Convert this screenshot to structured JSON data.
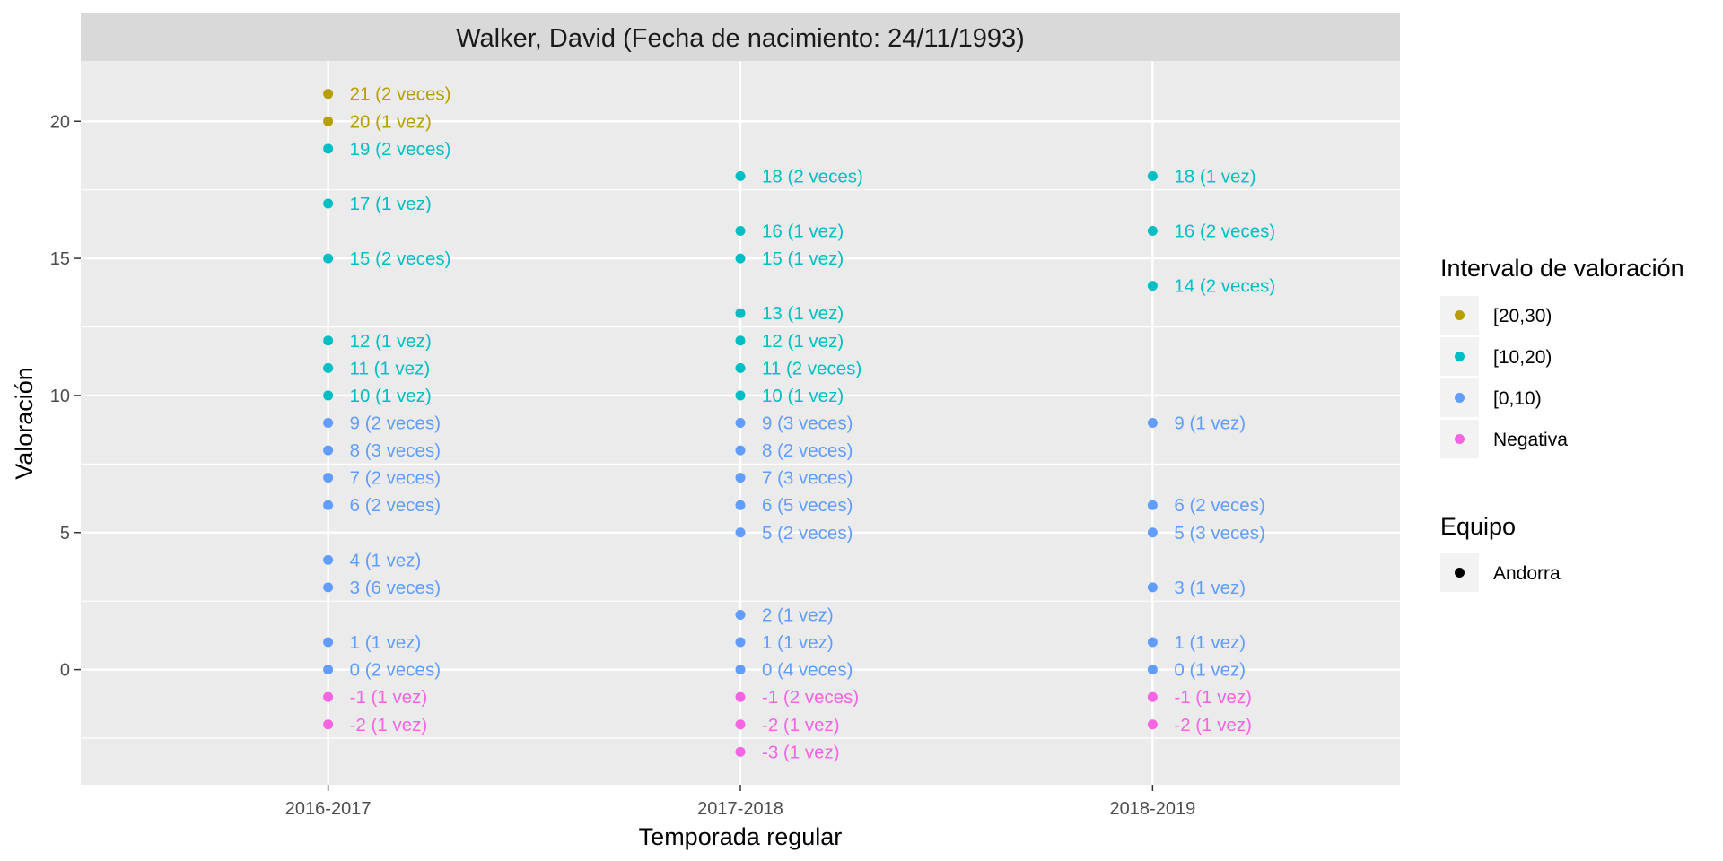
{
  "chart_data": {
    "type": "scatter",
    "title": "Walker, David (Fecha de nacimiento: 24/11/1993)",
    "xlabel": "Temporada regular",
    "ylabel": "Valoración",
    "categories": [
      "2016-2017",
      "2017-2018",
      "2018-2019"
    ],
    "ylim": [
      -4.2,
      22.2
    ],
    "yticks": [
      0,
      5,
      10,
      15,
      20
    ],
    "yticks_labels": [
      "0",
      "5",
      "10",
      "15",
      "20"
    ],
    "grid": true,
    "legend_position": "right",
    "color_legend": {
      "title": "Intervalo de valoración",
      "entries": [
        {
          "label": "[20,30)",
          "color": "#B79F00"
        },
        {
          "label": "[10,20)",
          "color": "#00BFC4"
        },
        {
          "label": "[0,10)",
          "color": "#619CFF"
        },
        {
          "label": "Negativa",
          "color": "#F564E3"
        }
      ]
    },
    "team_legend": {
      "title": "Equipo",
      "entries": [
        {
          "label": "Andorra",
          "color": "#000000"
        }
      ]
    },
    "points": [
      {
        "x": "2016-2017",
        "y": 21,
        "label": "21 (2 veces)",
        "group": "[20,30)"
      },
      {
        "x": "2016-2017",
        "y": 20,
        "label": "20 (1 vez)",
        "group": "[20,30)"
      },
      {
        "x": "2016-2017",
        "y": 19,
        "label": "19 (2 veces)",
        "group": "[10,20)"
      },
      {
        "x": "2016-2017",
        "y": 17,
        "label": "17 (1 vez)",
        "group": "[10,20)"
      },
      {
        "x": "2016-2017",
        "y": 15,
        "label": "15 (2 veces)",
        "group": "[10,20)"
      },
      {
        "x": "2016-2017",
        "y": 12,
        "label": "12 (1 vez)",
        "group": "[10,20)"
      },
      {
        "x": "2016-2017",
        "y": 11,
        "label": "11 (1 vez)",
        "group": "[10,20)"
      },
      {
        "x": "2016-2017",
        "y": 10,
        "label": "10 (1 vez)",
        "group": "[10,20)"
      },
      {
        "x": "2016-2017",
        "y": 9,
        "label": "9 (2 veces)",
        "group": "[0,10)"
      },
      {
        "x": "2016-2017",
        "y": 8,
        "label": "8 (3 veces)",
        "group": "[0,10)"
      },
      {
        "x": "2016-2017",
        "y": 7,
        "label": "7 (2 veces)",
        "group": "[0,10)"
      },
      {
        "x": "2016-2017",
        "y": 6,
        "label": "6 (2 veces)",
        "group": "[0,10)"
      },
      {
        "x": "2016-2017",
        "y": 4,
        "label": "4 (1 vez)",
        "group": "[0,10)"
      },
      {
        "x": "2016-2017",
        "y": 3,
        "label": "3 (6 veces)",
        "group": "[0,10)"
      },
      {
        "x": "2016-2017",
        "y": 1,
        "label": "1 (1 vez)",
        "group": "[0,10)"
      },
      {
        "x": "2016-2017",
        "y": 0,
        "label": "0 (2 veces)",
        "group": "[0,10)"
      },
      {
        "x": "2016-2017",
        "y": -1,
        "label": "-1 (1 vez)",
        "group": "Negativa"
      },
      {
        "x": "2016-2017",
        "y": -2,
        "label": "-2 (1 vez)",
        "group": "Negativa"
      },
      {
        "x": "2017-2018",
        "y": 18,
        "label": "18 (2 veces)",
        "group": "[10,20)"
      },
      {
        "x": "2017-2018",
        "y": 16,
        "label": "16 (1 vez)",
        "group": "[10,20)"
      },
      {
        "x": "2017-2018",
        "y": 15,
        "label": "15 (1 vez)",
        "group": "[10,20)"
      },
      {
        "x": "2017-2018",
        "y": 13,
        "label": "13 (1 vez)",
        "group": "[10,20)"
      },
      {
        "x": "2017-2018",
        "y": 12,
        "label": "12 (1 vez)",
        "group": "[10,20)"
      },
      {
        "x": "2017-2018",
        "y": 11,
        "label": "11 (2 veces)",
        "group": "[10,20)"
      },
      {
        "x": "2017-2018",
        "y": 10,
        "label": "10 (1 vez)",
        "group": "[10,20)"
      },
      {
        "x": "2017-2018",
        "y": 9,
        "label": "9 (3 veces)",
        "group": "[0,10)"
      },
      {
        "x": "2017-2018",
        "y": 8,
        "label": "8 (2 veces)",
        "group": "[0,10)"
      },
      {
        "x": "2017-2018",
        "y": 7,
        "label": "7 (3 veces)",
        "group": "[0,10)"
      },
      {
        "x": "2017-2018",
        "y": 6,
        "label": "6 (5 veces)",
        "group": "[0,10)"
      },
      {
        "x": "2017-2018",
        "y": 5,
        "label": "5 (2 veces)",
        "group": "[0,10)"
      },
      {
        "x": "2017-2018",
        "y": 2,
        "label": "2 (1 vez)",
        "group": "[0,10)"
      },
      {
        "x": "2017-2018",
        "y": 1,
        "label": "1 (1 vez)",
        "group": "[0,10)"
      },
      {
        "x": "2017-2018",
        "y": 0,
        "label": "0 (4 veces)",
        "group": "[0,10)"
      },
      {
        "x": "2017-2018",
        "y": -1,
        "label": "-1 (2 veces)",
        "group": "Negativa"
      },
      {
        "x": "2017-2018",
        "y": -2,
        "label": "-2 (1 vez)",
        "group": "Negativa"
      },
      {
        "x": "2017-2018",
        "y": -3,
        "label": "-3 (1 vez)",
        "group": "Negativa"
      },
      {
        "x": "2018-2019",
        "y": 18,
        "label": "18 (1 vez)",
        "group": "[10,20)"
      },
      {
        "x": "2018-2019",
        "y": 16,
        "label": "16 (2 veces)",
        "group": "[10,20)"
      },
      {
        "x": "2018-2019",
        "y": 14,
        "label": "14 (2 veces)",
        "group": "[10,20)"
      },
      {
        "x": "2018-2019",
        "y": 9,
        "label": "9 (1 vez)",
        "group": "[0,10)"
      },
      {
        "x": "2018-2019",
        "y": 6,
        "label": "6 (2 veces)",
        "group": "[0,10)"
      },
      {
        "x": "2018-2019",
        "y": 5,
        "label": "5 (3 veces)",
        "group": "[0,10)"
      },
      {
        "x": "2018-2019",
        "y": 3,
        "label": "3 (1 vez)",
        "group": "[0,10)"
      },
      {
        "x": "2018-2019",
        "y": 1,
        "label": "1 (1 vez)",
        "group": "[0,10)"
      },
      {
        "x": "2018-2019",
        "y": 0,
        "label": "0 (1 vez)",
        "group": "[0,10)"
      },
      {
        "x": "2018-2019",
        "y": -1,
        "label": "-1 (1 vez)",
        "group": "Negativa"
      },
      {
        "x": "2018-2019",
        "y": -2,
        "label": "-2 (1 vez)",
        "group": "Negativa"
      }
    ]
  }
}
